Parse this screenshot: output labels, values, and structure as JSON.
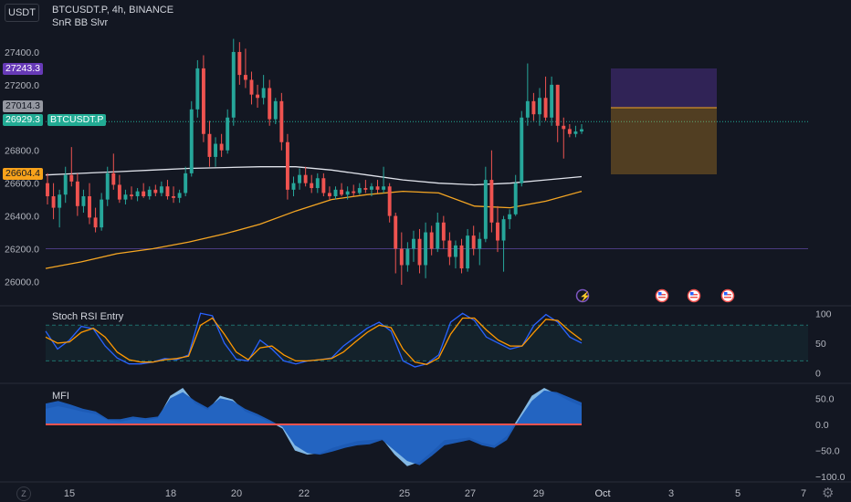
{
  "header": {
    "currency": "USDT",
    "symbol_line": "BTCUSDT.P, 4h, BINANCE",
    "indicator_line": "SnR BB Slvr"
  },
  "price_tags": {
    "purple": "27243.3",
    "grey": "27014.3",
    "last": "26929.3",
    "last_symbol": "BTCUSDT.P",
    "orange": "26604.4"
  },
  "colors": {
    "background": "#131722",
    "up": "#26a69a",
    "down": "#ef5350",
    "ma_white": "#e0e3eb",
    "ma_orange": "#f5a623",
    "stoch_k": "#2962ff",
    "stoch_d": "#ff9800",
    "mfi_fill": "#1e5fbf",
    "mfi_light": "#90caf9",
    "purple_tag": "#673ab7",
    "teal_tag": "#22ab94",
    "orange_tag": "#f7a21b"
  },
  "icons": [
    "flash-event-icon",
    "us-flag-event-icon"
  ],
  "chart_data": [
    {
      "type": "candlestick",
      "title": "BTCUSDT.P, 4h, BINANCE",
      "y_ticks": [
        "27400.0",
        "27200.0",
        "27000.0",
        "26800.0",
        "26600.0",
        "26400.0",
        "26200.0",
        "26000.0"
      ],
      "ylim": [
        25880,
        27550
      ],
      "x_ticks": [
        "15",
        "18",
        "20",
        "22",
        "25",
        "27",
        "29",
        "Oct",
        "3",
        "5",
        "7"
      ],
      "candles": [
        [
          26600,
          26660,
          26470,
          26520
        ],
        [
          26520,
          26600,
          26380,
          26450
        ],
        [
          26450,
          26560,
          26330,
          26530
        ],
        [
          26530,
          26700,
          26480,
          26650
        ],
        [
          26650,
          26820,
          26580,
          26610
        ],
        [
          26610,
          26660,
          26400,
          26460
        ],
        [
          26460,
          26560,
          26420,
          26520
        ],
        [
          26520,
          26600,
          26350,
          26390
        ],
        [
          26390,
          26450,
          26300,
          26330
        ],
        [
          26330,
          26540,
          26310,
          26500
        ],
        [
          26500,
          26700,
          26460,
          26660
        ],
        [
          26660,
          26780,
          26560,
          26590
        ],
        [
          26590,
          26650,
          26480,
          26500
        ],
        [
          26500,
          26560,
          26470,
          26530
        ],
        [
          26530,
          26580,
          26500,
          26520
        ],
        [
          26520,
          26570,
          26490,
          26550
        ],
        [
          26550,
          26600,
          26510,
          26520
        ],
        [
          26520,
          26580,
          26500,
          26560
        ],
        [
          26560,
          26590,
          26520,
          26540
        ],
        [
          26540,
          26610,
          26520,
          26580
        ],
        [
          26580,
          26620,
          26500,
          26520
        ],
        [
          26520,
          26580,
          26480,
          26510
        ],
        [
          26510,
          26560,
          26480,
          26540
        ],
        [
          26540,
          26700,
          26520,
          26660
        ],
        [
          26660,
          27100,
          26640,
          27050
        ],
        [
          27050,
          27350,
          27000,
          27300
        ],
        [
          27300,
          27380,
          26850,
          26900
        ],
        [
          26900,
          26980,
          26700,
          26760
        ],
        [
          26760,
          26880,
          26700,
          26840
        ],
        [
          26840,
          26900,
          26760,
          26800
        ],
        [
          26800,
          27050,
          26780,
          27000
        ],
        [
          27000,
          27480,
          26950,
          27400
        ],
        [
          27400,
          27460,
          27200,
          27260
        ],
        [
          27260,
          27420,
          27180,
          27230
        ],
        [
          27230,
          27280,
          27080,
          27140
        ],
        [
          27140,
          27200,
          27060,
          27120
        ],
        [
          27120,
          27260,
          27080,
          27180
        ],
        [
          27180,
          27230,
          26950,
          26990
        ],
        [
          26990,
          27120,
          26960,
          27100
        ],
        [
          27100,
          27150,
          26800,
          26850
        ],
        [
          26850,
          26900,
          26500,
          26560
        ],
        [
          26560,
          26640,
          26520,
          26600
        ],
        [
          26600,
          26690,
          26560,
          26650
        ],
        [
          26650,
          26700,
          26580,
          26600
        ],
        [
          26600,
          26650,
          26540,
          26570
        ],
        [
          26570,
          26660,
          26540,
          26630
        ],
        [
          26630,
          26660,
          26520,
          26540
        ],
        [
          26540,
          26580,
          26500,
          26520
        ],
        [
          26520,
          26580,
          26500,
          26560
        ],
        [
          26560,
          26600,
          26520,
          26530
        ],
        [
          26530,
          26580,
          26500,
          26550
        ],
        [
          26550,
          26590,
          26520,
          26540
        ],
        [
          26540,
          26600,
          26530,
          26570
        ],
        [
          26570,
          26620,
          26540,
          26560
        ],
        [
          26560,
          26600,
          26520,
          26580
        ],
        [
          26580,
          26620,
          26540,
          26560
        ],
        [
          26560,
          26700,
          26540,
          26580
        ],
        [
          26580,
          26600,
          26360,
          26400
        ],
        [
          26400,
          26420,
          26050,
          26200
        ],
        [
          26200,
          26300,
          25980,
          26100
        ],
        [
          26100,
          26240,
          26060,
          26200
        ],
        [
          26200,
          26310,
          26120,
          26260
        ],
        [
          26260,
          26320,
          26050,
          26100
        ],
        [
          26100,
          26360,
          26020,
          26300
        ],
        [
          26300,
          26340,
          26160,
          26200
        ],
        [
          26200,
          26420,
          26180,
          26360
        ],
        [
          26360,
          26400,
          26200,
          26250
        ],
        [
          26250,
          26300,
          26100,
          26150
        ],
        [
          26150,
          26250,
          26080,
          26220
        ],
        [
          26220,
          26260,
          26050,
          26080
        ],
        [
          26080,
          26320,
          26060,
          26280
        ],
        [
          26280,
          26340,
          26160,
          26200
        ],
        [
          26200,
          26300,
          26100,
          26260
        ],
        [
          26260,
          26700,
          26240,
          26620
        ],
        [
          26620,
          26800,
          26300,
          26360
        ],
        [
          26360,
          26460,
          26180,
          26250
        ],
        [
          26250,
          26400,
          26060,
          26380
        ],
        [
          26380,
          26440,
          26320,
          26410
        ],
        [
          26410,
          26650,
          26400,
          26600
        ],
        [
          26600,
          27040,
          26580,
          27000
        ],
        [
          27000,
          27330,
          26950,
          27100
        ],
        [
          27100,
          27150,
          26980,
          27020
        ],
        [
          27020,
          27180,
          26950,
          27120
        ],
        [
          27120,
          27250,
          26980,
          27000
        ],
        [
          27000,
          27250,
          26950,
          27200
        ],
        [
          27200,
          27200,
          26850,
          26950
        ],
        [
          26950,
          27000,
          26750,
          26930
        ],
        [
          26930,
          26960,
          26880,
          26900
        ],
        [
          26900,
          26950,
          26880,
          26915
        ],
        [
          26915,
          26960,
          26900,
          26929
        ]
      ],
      "ma_white": [
        26650,
        26660,
        26670,
        26680,
        26690,
        26695,
        26700,
        26700,
        26680,
        26650,
        26620,
        26600,
        26590,
        26600,
        26620,
        26640
      ],
      "ma_orange": [
        26080,
        26120,
        26170,
        26200,
        26240,
        26290,
        26350,
        26430,
        26500,
        26530,
        26550,
        26540,
        26460,
        26450,
        26490,
        26550
      ],
      "level_lines": [
        27014.3,
        26200
      ]
    },
    {
      "type": "line",
      "title": "Stoch RSI Entry",
      "y_ticks": [
        "100",
        "50",
        "0"
      ],
      "ylim": [
        -10,
        105
      ],
      "bands": [
        80,
        20
      ],
      "series": [
        {
          "name": "K",
          "values": [
            70,
            40,
            55,
            78,
            74,
            45,
            25,
            15,
            15,
            18,
            24,
            22,
            30,
            100,
            96,
            50,
            23,
            20,
            55,
            40,
            20,
            15,
            20,
            22,
            25,
            45,
            60,
            75,
            85,
            70,
            20,
            10,
            15,
            30,
            85,
            100,
            88,
            60,
            50,
            40,
            45,
            80,
            98,
            85,
            60,
            50
          ]
        },
        {
          "name": "D",
          "values": [
            60,
            50,
            52,
            68,
            75,
            60,
            35,
            22,
            18,
            18,
            22,
            24,
            28,
            80,
            92,
            65,
            35,
            22,
            42,
            45,
            30,
            20,
            20,
            22,
            24,
            35,
            52,
            68,
            80,
            76,
            40,
            18,
            14,
            25,
            65,
            92,
            92,
            72,
            55,
            45,
            45,
            68,
            90,
            88,
            70,
            55
          ]
        }
      ]
    },
    {
      "type": "area",
      "title": "MFI",
      "y_ticks": [
        "50.0",
        "0.0",
        "−50.0",
        "−100.0"
      ],
      "ylim": [
        -105,
        70
      ],
      "series": [
        {
          "name": "main",
          "values": [
            40,
            45,
            38,
            30,
            25,
            10,
            10,
            15,
            12,
            15,
            50,
            62,
            45,
            32,
            50,
            45,
            30,
            20,
            8,
            -5,
            -40,
            -55,
            -58,
            -52,
            -45,
            -40,
            -38,
            -30,
            -50,
            -70,
            -78,
            -60,
            -40,
            -35,
            -30,
            -40,
            -45,
            -30,
            10,
            45,
            65,
            62,
            52,
            42
          ]
        },
        {
          "name": "light",
          "values": [
            30,
            35,
            30,
            24,
            20,
            8,
            5,
            10,
            8,
            12,
            55,
            70,
            40,
            28,
            55,
            48,
            25,
            15,
            5,
            -8,
            -50,
            -58,
            -55,
            -45,
            -38,
            -32,
            -30,
            -28,
            -58,
            -80,
            -72,
            -52,
            -30,
            -28,
            -25,
            -35,
            -40,
            -22,
            15,
            55,
            70,
            58,
            45,
            35
          ]
        }
      ]
    }
  ],
  "panels": {
    "stoch": {
      "title": "Stoch RSI Entry"
    },
    "mfi": {
      "title": "MFI"
    }
  },
  "axis_labels": {
    "x": [
      "15",
      "18",
      "20",
      "22",
      "25",
      "27",
      "29",
      "Oct",
      "3",
      "5",
      "7"
    ],
    "price": [
      "27400.0",
      "27200.0",
      "27000.0",
      "26800.0",
      "26600.0",
      "26400.0",
      "26200.0",
      "26000.0"
    ],
    "stoch": [
      "100",
      "50",
      "0"
    ],
    "mfi": [
      "50.0",
      "0.0",
      "−50.0",
      "−100.0"
    ]
  },
  "bottom": {
    "zoom_label": "Z"
  }
}
